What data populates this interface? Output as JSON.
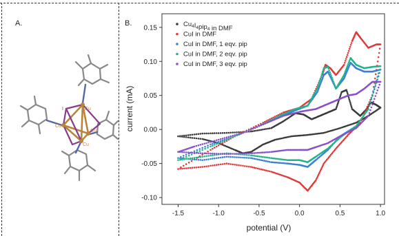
{
  "panels": {
    "a_label": "A.",
    "b_label": "B."
  },
  "molecule": {
    "atom_labels": [
      "Cu",
      "Cu",
      "Cu",
      "Cu",
      "I"
    ]
  },
  "chart_data": {
    "type": "scatter",
    "title": "",
    "xlabel": "potential (V)",
    "ylabel": "current (mA)",
    "xlim": [
      -1.7,
      1.05
    ],
    "ylim": [
      -0.11,
      0.17
    ],
    "x_ticks": [
      "-1.5",
      "-1.0",
      "-0.5",
      "0.0",
      "0.5",
      "1.0"
    ],
    "x_tick_values": [
      -1.5,
      -1.0,
      -0.5,
      0.0,
      0.5,
      1.0
    ],
    "y_ticks": [
      "-0.10",
      "-0.05",
      "0.00",
      "0.05",
      "0.10",
      "0.15"
    ],
    "y_tick_values": [
      -0.1,
      -0.05,
      0.0,
      0.05,
      0.1,
      0.15
    ],
    "legend_position": "top-left",
    "series": [
      {
        "name": "Cu4I4pip4 in DMF",
        "legend_main": "Cu",
        "legend_sub1": "4",
        "legend_mid1": "I",
        "legend_sub2": "4",
        "legend_mid2": "pip",
        "legend_sub3": "4",
        "legend_tail": " in DMF",
        "color": "#3a3a3a",
        "points": [
          [
            -1.5,
            -0.01
          ],
          [
            -1.2,
            -0.014
          ],
          [
            -1.0,
            -0.02
          ],
          [
            -0.8,
            -0.03
          ],
          [
            -0.7,
            -0.035
          ],
          [
            -0.6,
            -0.033
          ],
          [
            -0.45,
            -0.022
          ],
          [
            -0.3,
            -0.015
          ],
          [
            -0.1,
            -0.01
          ],
          [
            0.1,
            -0.008
          ],
          [
            0.3,
            -0.005
          ],
          [
            0.5,
            0.002
          ],
          [
            0.7,
            0.01
          ],
          [
            0.85,
            0.02
          ],
          [
            1.0,
            0.032
          ],
          [
            0.95,
            0.036
          ],
          [
            0.88,
            0.04
          ],
          [
            0.83,
            0.03
          ],
          [
            0.75,
            0.02
          ],
          [
            0.65,
            0.03
          ],
          [
            0.58,
            0.058
          ],
          [
            0.52,
            0.055
          ],
          [
            0.45,
            0.03
          ],
          [
            0.35,
            0.025
          ],
          [
            0.25,
            0.02
          ],
          [
            0.15,
            0.015
          ],
          [
            0.05,
            0.022
          ],
          [
            -0.05,
            0.024
          ],
          [
            -0.2,
            0.012
          ],
          [
            -0.35,
            0.002
          ],
          [
            -0.6,
            -0.003
          ],
          [
            -0.9,
            -0.005
          ],
          [
            -1.2,
            -0.006
          ],
          [
            -1.5,
            -0.01
          ]
        ]
      },
      {
        "name": "CuI in DMF",
        "color": "#e03a3a",
        "points": [
          [
            -1.5,
            -0.058
          ],
          [
            -1.2,
            -0.055
          ],
          [
            -0.9,
            -0.05
          ],
          [
            -0.6,
            -0.055
          ],
          [
            -0.35,
            -0.062
          ],
          [
            -0.15,
            -0.07
          ],
          [
            0.0,
            -0.078
          ],
          [
            0.1,
            -0.09
          ],
          [
            0.2,
            -0.075
          ],
          [
            0.3,
            -0.05
          ],
          [
            0.45,
            -0.028
          ],
          [
            0.6,
            -0.008
          ],
          [
            0.75,
            0.01
          ],
          [
            0.9,
            0.05
          ],
          [
            1.0,
            0.125
          ],
          [
            0.95,
            0.125
          ],
          [
            0.85,
            0.12
          ],
          [
            0.75,
            0.135
          ],
          [
            0.7,
            0.143
          ],
          [
            0.65,
            0.13
          ],
          [
            0.55,
            0.095
          ],
          [
            0.45,
            0.08
          ],
          [
            0.38,
            0.09
          ],
          [
            0.32,
            0.095
          ],
          [
            0.28,
            0.08
          ],
          [
            0.15,
            0.045
          ],
          [
            0.0,
            0.032
          ],
          [
            -0.2,
            0.025
          ],
          [
            -0.45,
            0.01
          ],
          [
            -0.8,
            -0.01
          ],
          [
            -1.1,
            -0.03
          ],
          [
            -1.5,
            -0.058
          ]
        ]
      },
      {
        "name": "CuI in DMF, 1 eqv. pip",
        "color": "#3a7fd5",
        "points": [
          [
            -1.5,
            -0.042
          ],
          [
            -1.2,
            -0.045
          ],
          [
            -0.9,
            -0.04
          ],
          [
            -0.6,
            -0.042
          ],
          [
            -0.35,
            -0.048
          ],
          [
            -0.15,
            -0.05
          ],
          [
            0.0,
            -0.052
          ],
          [
            0.1,
            -0.055
          ],
          [
            0.2,
            -0.045
          ],
          [
            0.35,
            -0.03
          ],
          [
            0.5,
            -0.01
          ],
          [
            0.7,
            0.005
          ],
          [
            0.85,
            0.03
          ],
          [
            1.0,
            0.088
          ],
          [
            0.9,
            0.085
          ],
          [
            0.8,
            0.085
          ],
          [
            0.7,
            0.09
          ],
          [
            0.63,
            0.098
          ],
          [
            0.55,
            0.075
          ],
          [
            0.45,
            0.06
          ],
          [
            0.35,
            0.085
          ],
          [
            0.3,
            0.08
          ],
          [
            0.22,
            0.055
          ],
          [
            0.1,
            0.035
          ],
          [
            -0.05,
            0.028
          ],
          [
            -0.25,
            0.018
          ],
          [
            -0.5,
            0.005
          ],
          [
            -0.8,
            -0.01
          ],
          [
            -1.1,
            -0.022
          ],
          [
            -1.5,
            -0.042
          ]
        ]
      },
      {
        "name": "CuI in DMF, 2 eqv. pip",
        "color": "#1fb58a",
        "points": [
          [
            -1.5,
            -0.045
          ],
          [
            -1.2,
            -0.04
          ],
          [
            -0.9,
            -0.035
          ],
          [
            -0.6,
            -0.038
          ],
          [
            -0.35,
            -0.042
          ],
          [
            -0.15,
            -0.045
          ],
          [
            0.0,
            -0.045
          ],
          [
            0.1,
            -0.048
          ],
          [
            0.2,
            -0.04
          ],
          [
            0.35,
            -0.028
          ],
          [
            0.5,
            -0.012
          ],
          [
            0.7,
            0.005
          ],
          [
            0.85,
            0.03
          ],
          [
            1.0,
            0.093
          ],
          [
            0.9,
            0.092
          ],
          [
            0.8,
            0.09
          ],
          [
            0.7,
            0.095
          ],
          [
            0.63,
            0.105
          ],
          [
            0.55,
            0.08
          ],
          [
            0.45,
            0.06
          ],
          [
            0.35,
            0.092
          ],
          [
            0.3,
            0.09
          ],
          [
            0.22,
            0.06
          ],
          [
            0.1,
            0.035
          ],
          [
            -0.05,
            0.03
          ],
          [
            -0.25,
            0.02
          ],
          [
            -0.5,
            0.005
          ],
          [
            -0.8,
            -0.01
          ],
          [
            -1.1,
            -0.025
          ],
          [
            -1.5,
            -0.045
          ]
        ]
      },
      {
        "name": "CuI in DMF, 3 eqv. pip",
        "color": "#8a4fc8",
        "points": [
          [
            -1.5,
            -0.033
          ],
          [
            -1.2,
            -0.035
          ],
          [
            -0.9,
            -0.036
          ],
          [
            -0.6,
            -0.035
          ],
          [
            -0.35,
            -0.033
          ],
          [
            -0.15,
            -0.03
          ],
          [
            0.0,
            -0.03
          ],
          [
            0.1,
            -0.03
          ],
          [
            0.2,
            -0.026
          ],
          [
            0.35,
            -0.02
          ],
          [
            0.5,
            -0.01
          ],
          [
            0.7,
            0.002
          ],
          [
            0.85,
            0.02
          ],
          [
            1.0,
            0.07
          ],
          [
            0.9,
            0.07
          ],
          [
            0.8,
            0.06
          ],
          [
            0.7,
            0.052
          ],
          [
            0.6,
            0.05
          ],
          [
            0.5,
            0.045
          ],
          [
            0.4,
            0.04
          ],
          [
            0.3,
            0.035
          ],
          [
            0.2,
            0.03
          ],
          [
            0.1,
            0.028
          ],
          [
            0.0,
            0.026
          ],
          [
            -0.2,
            0.02
          ],
          [
            -0.4,
            0.01
          ],
          [
            -0.7,
            -0.005
          ],
          [
            -1.0,
            -0.015
          ],
          [
            -1.3,
            -0.025
          ],
          [
            -1.5,
            -0.033
          ]
        ]
      }
    ]
  }
}
